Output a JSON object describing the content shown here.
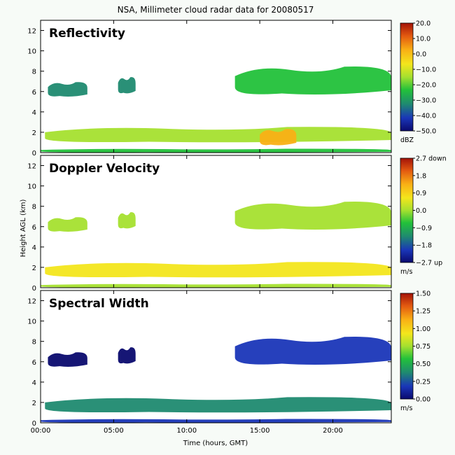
{
  "title": "NSA, Millimeter cloud radar data for 20080517",
  "xlabel": "Time (hours, GMT)",
  "ylabel": "Height AGL (km)",
  "x_ticks": [
    "00:00",
    "05:00",
    "10:00",
    "15:00",
    "20:00"
  ],
  "y_ticks": [
    "0",
    "2",
    "4",
    "6",
    "8",
    "10",
    "12"
  ],
  "colors": {
    "background": "#f7fbf7",
    "colormap": [
      "#0a0a6e",
      "#1a36b8",
      "#1f8a70",
      "#22c13a",
      "#a5e02f",
      "#f3e61c",
      "#f9b015",
      "#e35a10",
      "#a31208"
    ]
  },
  "panels": [
    {
      "title": "Reflectivity",
      "colorbar_ticks": [
        "20.0",
        "10.0",
        "0.0",
        "−10.0",
        "−20.0",
        "−30.0",
        "−40.0",
        "−50.0"
      ],
      "colorbar_unit": "dBZ"
    },
    {
      "title": "Doppler Velocity",
      "colorbar_ticks": [
        "2.7 down",
        "1.8",
        "0.9",
        "0.0",
        "−0.9",
        "−1.8",
        "−2.7 up"
      ],
      "colorbar_unit": "m/s"
    },
    {
      "title": "Spectral Width",
      "colorbar_ticks": [
        "1.50",
        "1.25",
        "1.00",
        "0.75",
        "0.50",
        "0.25",
        "0.00"
      ],
      "colorbar_unit": "m/s"
    }
  ],
  "chart_data": [
    {
      "type": "heatmap",
      "title": "Reflectivity",
      "xlim": [
        0,
        24
      ],
      "ylim": [
        0,
        13
      ],
      "colorbar_range": [
        -50,
        20
      ],
      "unit": "dBZ",
      "layers": [
        {
          "x": [
            0.5,
            3.2
          ],
          "y": [
            5.4,
            7.0
          ],
          "value": -32
        },
        {
          "x": [
            5.3,
            6.5
          ],
          "y": [
            5.7,
            7.5
          ],
          "value": -35
        },
        {
          "x": [
            13.3,
            24
          ],
          "y": [
            5.5,
            8.6
          ],
          "value": -28
        },
        {
          "x": [
            0.3,
            24
          ],
          "y": [
            0.9,
            2.6
          ],
          "value": -12
        },
        {
          "x": [
            15.0,
            17.5
          ],
          "y": [
            0.6,
            2.4
          ],
          "value": 3
        },
        {
          "x": [
            0,
            24
          ],
          "y": [
            0,
            0.4
          ],
          "value": -20
        }
      ]
    },
    {
      "type": "heatmap",
      "title": "Doppler Velocity",
      "xlim": [
        0,
        24
      ],
      "ylim": [
        0,
        13
      ],
      "colorbar_range": [
        -2.7,
        2.7
      ],
      "unit": "m/s",
      "layers": [
        {
          "x": [
            0.5,
            3.2
          ],
          "y": [
            5.4,
            7.0
          ],
          "value": 0.3
        },
        {
          "x": [
            5.3,
            6.5
          ],
          "y": [
            5.7,
            7.5
          ],
          "value": 0.3
        },
        {
          "x": [
            13.3,
            24
          ],
          "y": [
            5.5,
            8.6
          ],
          "value": 0.3
        },
        {
          "x": [
            0.3,
            24
          ],
          "y": [
            0.9,
            2.6
          ],
          "value": 0.4
        },
        {
          "x": [
            0,
            24
          ],
          "y": [
            0,
            0.4
          ],
          "value": 0.2
        }
      ]
    },
    {
      "type": "heatmap",
      "title": "Spectral Width",
      "xlim": [
        0,
        24
      ],
      "ylim": [
        0,
        13
      ],
      "colorbar_range": [
        0,
        1.5
      ],
      "unit": "m/s",
      "layers": [
        {
          "x": [
            0.5,
            3.2
          ],
          "y": [
            5.4,
            7.0
          ],
          "value": 0.08
        },
        {
          "x": [
            5.3,
            6.5
          ],
          "y": [
            5.7,
            7.5
          ],
          "value": 0.08
        },
        {
          "x": [
            13.3,
            24
          ],
          "y": [
            5.5,
            8.6
          ],
          "value": 0.1
        },
        {
          "x": [
            0.3,
            24
          ],
          "y": [
            0.9,
            2.6
          ],
          "value": 0.3
        },
        {
          "x": [
            0,
            24
          ],
          "y": [
            0,
            0.4
          ],
          "value": 0.15
        }
      ]
    }
  ]
}
